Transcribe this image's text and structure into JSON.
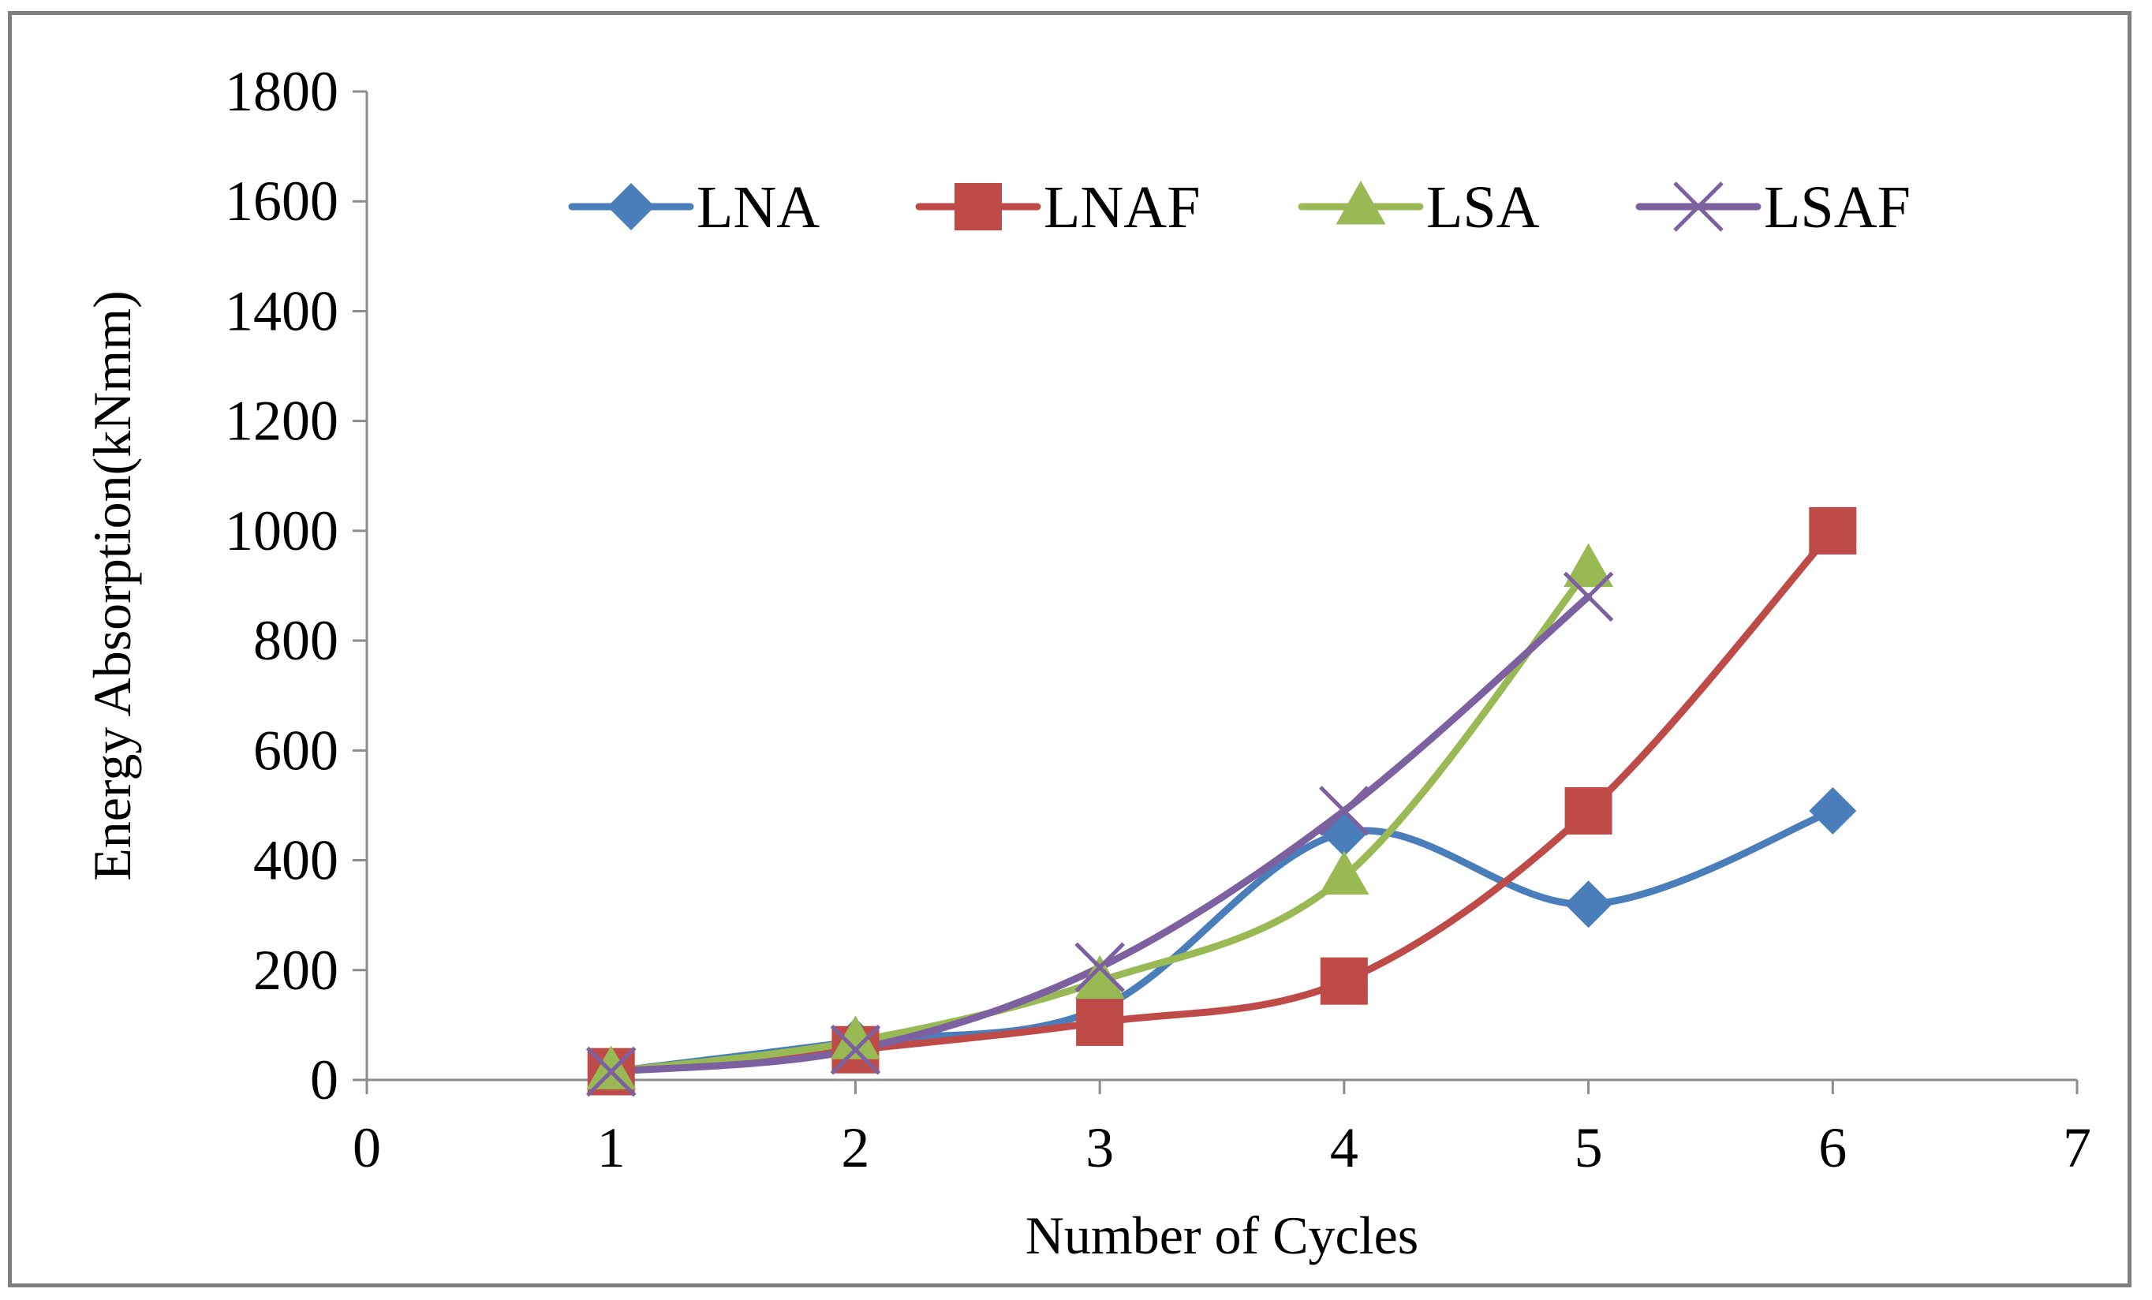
{
  "chart_data": {
    "type": "line",
    "title": "",
    "xlabel": "Number of Cycles",
    "ylabel": "Energy Absorption(kNmm)",
    "xlim": [
      0,
      7
    ],
    "ylim": [
      0,
      1800
    ],
    "xticks": [
      0,
      1,
      2,
      3,
      4,
      5,
      6,
      7
    ],
    "yticks": [
      0,
      200,
      400,
      600,
      800,
      1000,
      1200,
      1400,
      1600,
      1800
    ],
    "xtick_labels": [
      "0",
      "1",
      "2",
      "3",
      "4",
      "5",
      "6",
      "7"
    ],
    "ytick_labels": [
      "0",
      "200",
      "400",
      "600",
      "800",
      "1000",
      "1200",
      "1400",
      "1600",
      "1800"
    ],
    "grid": false,
    "legend_position": "top",
    "smooth": true,
    "series": [
      {
        "name": "LNA",
        "color": "#4a7ebb",
        "marker": "diamond",
        "x": [
          1,
          2,
          3,
          4,
          5,
          6
        ],
        "y": [
          15,
          70,
          130,
          450,
          320,
          490
        ]
      },
      {
        "name": "LNAF",
        "color": "#be4b48",
        "marker": "square",
        "x": [
          1,
          2,
          3,
          4,
          5,
          6
        ],
        "y": [
          15,
          55,
          105,
          180,
          490,
          1000
        ]
      },
      {
        "name": "LSA",
        "color": "#98b954",
        "marker": "triangle",
        "x": [
          1,
          2,
          3,
          4,
          5
        ],
        "y": [
          15,
          70,
          180,
          370,
          930
        ]
      },
      {
        "name": "LSAF",
        "color": "#7d60a0",
        "marker": "x",
        "x": [
          1,
          2,
          3,
          4,
          5
        ],
        "y": [
          15,
          55,
          205,
          490,
          880
        ]
      }
    ]
  }
}
